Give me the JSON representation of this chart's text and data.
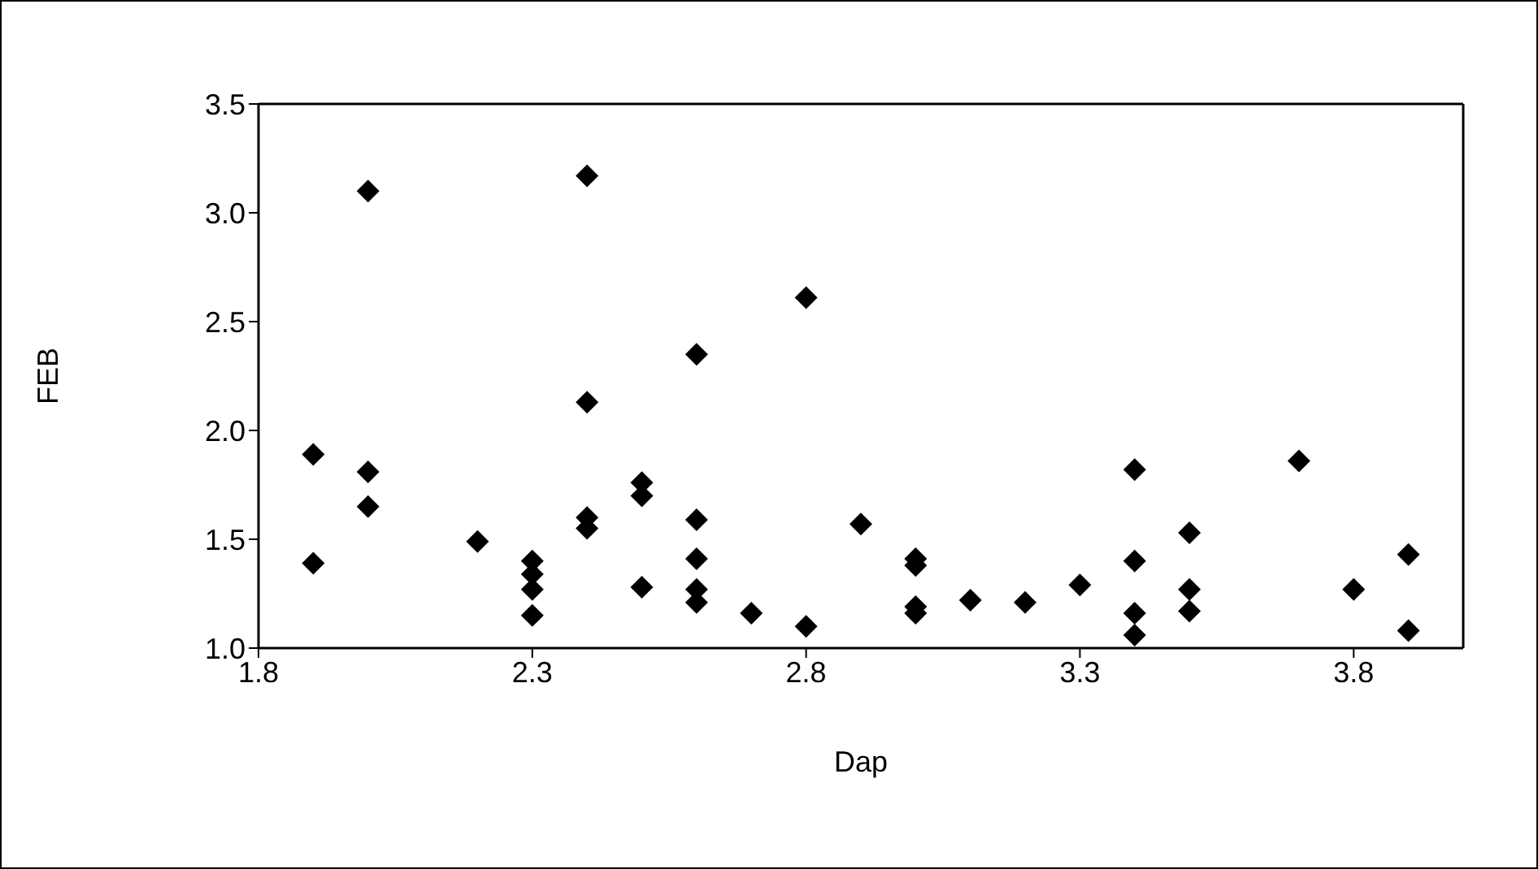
{
  "chart_data": {
    "type": "scatter",
    "xlabel": "Dap",
    "ylabel": "FEB",
    "marker": "diamond",
    "x": [
      1.9,
      1.9,
      2.0,
      2.0,
      2.0,
      2.2,
      2.3,
      2.3,
      2.3,
      2.3,
      2.4,
      2.4,
      2.4,
      2.4,
      2.5,
      2.5,
      2.5,
      2.6,
      2.6,
      2.6,
      2.6,
      2.6,
      2.7,
      2.8,
      2.8,
      2.9,
      3.0,
      3.0,
      3.0,
      3.0,
      3.1,
      3.2,
      3.3,
      3.4,
      3.4,
      3.4,
      3.4,
      3.5,
      3.5,
      3.5,
      3.7,
      3.8,
      3.9,
      3.9
    ],
    "series": [
      {
        "color": "#000000",
        "values": [
          1.89,
          1.39,
          3.1,
          1.81,
          1.65,
          1.49,
          1.4,
          1.34,
          1.27,
          1.15,
          3.17,
          2.13,
          1.6,
          1.55,
          1.76,
          1.7,
          1.28,
          2.35,
          1.59,
          1.41,
          1.27,
          1.21,
          1.16,
          2.61,
          1.1,
          1.57,
          1.41,
          1.38,
          1.19,
          1.16,
          1.22,
          1.21,
          1.29,
          1.82,
          1.4,
          1.16,
          1.06,
          1.53,
          1.27,
          1.17,
          1.86,
          1.27,
          1.43,
          1.08
        ]
      }
    ],
    "xlim": [
      1.8,
      4.0
    ],
    "xticks": [
      1.8,
      2.3,
      2.8,
      3.3,
      3.8
    ],
    "ylim": [
      1.0,
      3.5
    ],
    "yticks": [
      {
        "value": 1,
        "label": "1.0"
      },
      1.5,
      {
        "value": 2,
        "label": "2.0"
      },
      2.5,
      {
        "value": 3,
        "label": "3.0"
      },
      3.5
    ]
  }
}
